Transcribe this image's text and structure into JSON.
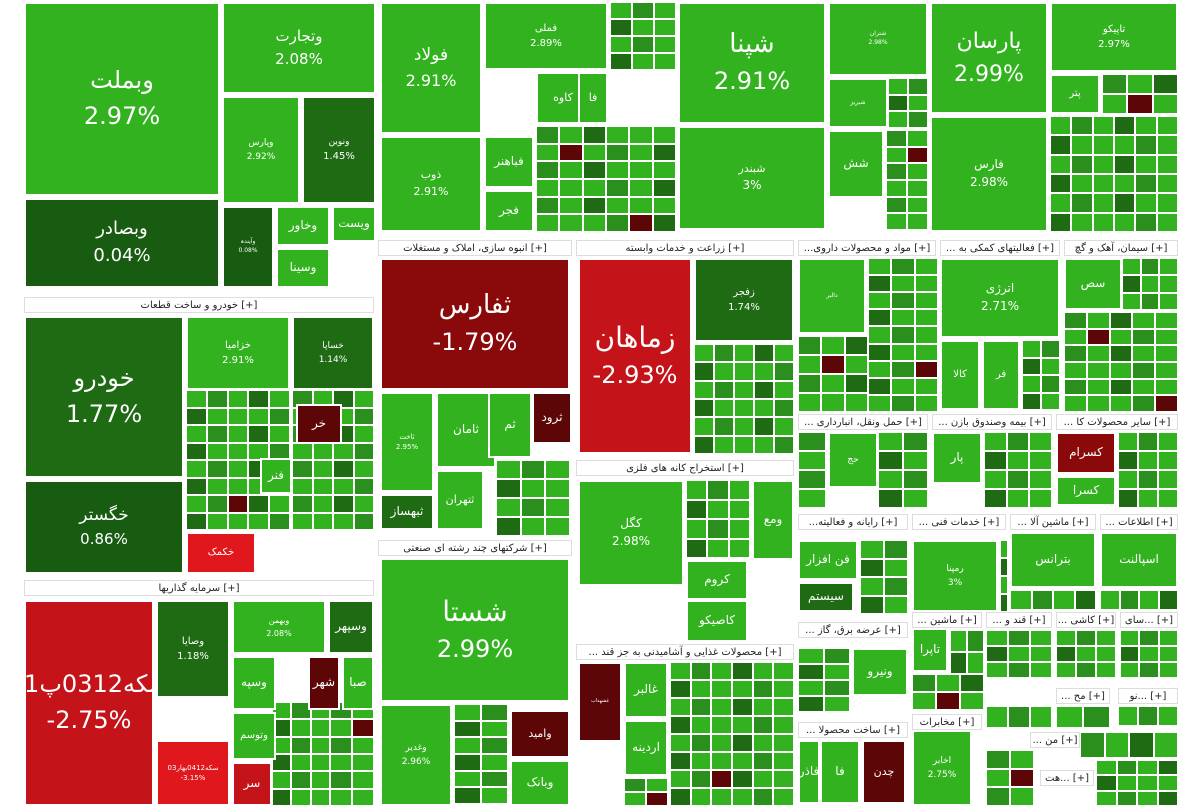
{
  "colors": {
    "green": "#33b21f",
    "green_mid": "#2b8f1d",
    "green_dark": "#1f6b14",
    "green_darkest": "#185c12",
    "red": "#c4141a",
    "red_bright": "#e0171c",
    "red_dark": "#8a0a0c",
    "red_darkest": "#5c0608",
    "header_bg": "#ffffff",
    "header_text": "#222222"
  },
  "chart_data": {
    "type": "treemap",
    "value_unit": "%",
    "sectors": [
      {
        "id": "bank",
        "header": null
      },
      {
        "id": "auto",
        "header": "[+] خودرو و ساخت قطعات"
      },
      {
        "id": "invest",
        "header": "[+] سرمایه گذاریها"
      },
      {
        "id": "metals",
        "header": null
      },
      {
        "id": "realestate",
        "header": "[+] انبوه سازی، املاک و مستغلات"
      },
      {
        "id": "multi",
        "header": "[+] شرکتهای چند رشته ای صنعتی"
      },
      {
        "id": "agri",
        "header": "[+] زراعت و خدمات وابسته"
      },
      {
        "id": "mining",
        "header": "[+] استخراج کانه های فلزی"
      },
      {
        "id": "food",
        "header": "[+] محصولات غذایی و آشامیدنی به جز قند ..."
      },
      {
        "id": "refinery",
        "header": null
      },
      {
        "id": "petchem",
        "header": null
      },
      {
        "id": "pharma",
        "header": "[+] مواد و محصولات داروی..."
      },
      {
        "id": "support",
        "header": "[+] فعالیتهای کمکی به ..."
      },
      {
        "id": "cement",
        "header": "[+] سیمان، آهک و گچ"
      },
      {
        "id": "transport",
        "header": "[+] حمل ونقل، انبارداری ..."
      },
      {
        "id": "insurance",
        "header": "[+] بیمه وصندوق بازن ..."
      },
      {
        "id": "othermin",
        "header": "[+] سایر محصولات کا ..."
      },
      {
        "id": "computer",
        "header": "[+] رایانه و فعالیته..."
      },
      {
        "id": "engineering",
        "header": "[+] خدمات فنی ..."
      },
      {
        "id": "machinery",
        "header": "[+] ماشین آلا ..."
      },
      {
        "id": "it",
        "header": "[+] اطلاعات ..."
      },
      {
        "id": "utility",
        "header": "[+] عرضه برق، گاز ..."
      },
      {
        "id": "tile",
        "header": "[+] کاشی ..."
      },
      {
        "id": "electric",
        "header": "[+] ماشین ..."
      },
      {
        "id": "sugar",
        "header": "[+] قند و ..."
      },
      {
        "id": "misc4",
        "header": "[+] ...سای"
      },
      {
        "id": "rubber",
        "header": "[+] ساخت محصولا ..."
      },
      {
        "id": "telecom",
        "header": "[+] مخابرات"
      },
      {
        "id": "s_mah",
        "header": "[+] مح ..."
      },
      {
        "id": "s_nu",
        "header": "[+] ...نو"
      },
      {
        "id": "s_man",
        "header": "[+] من ..."
      },
      {
        "id": "s_hat",
        "header": "[+] ...هت"
      }
    ],
    "tiles": [
      {
        "sector": "bank",
        "name": "وبملت",
        "change": "2.97%",
        "color": "green"
      },
      {
        "sector": "bank",
        "name": "وتجارت",
        "change": "2.08%",
        "color": "green"
      },
      {
        "sector": "bank",
        "name": "وپارس",
        "change": "2.92%",
        "color": "green"
      },
      {
        "sector": "bank",
        "name": "ونوین",
        "change": "1.45%",
        "color": "green_dark"
      },
      {
        "sector": "bank",
        "name": "وبصادر",
        "change": "0.04%",
        "color": "green_darkest"
      },
      {
        "sector": "bank",
        "name": "وآیندہ",
        "change": "0.08%",
        "color": "green_darkest"
      },
      {
        "sector": "bank",
        "name": "وخاور",
        "change": "",
        "color": "green"
      },
      {
        "sector": "bank",
        "name": "ویست",
        "change": "",
        "color": "green"
      },
      {
        "sector": "bank",
        "name": "وسینا",
        "change": "",
        "color": "green"
      },
      {
        "sector": "auto",
        "name": "خودرو",
        "change": "1.77%",
        "color": "green_dark"
      },
      {
        "sector": "auto",
        "name": "خگستر",
        "change": "0.86%",
        "color": "green_darkest"
      },
      {
        "sector": "auto",
        "name": "خزامیا",
        "change": "2.91%",
        "color": "green"
      },
      {
        "sector": "auto",
        "name": "خساپا",
        "change": "1.14%",
        "color": "green_dark"
      },
      {
        "sector": "auto",
        "name": "خکمک",
        "change": "",
        "color": "red_bright"
      },
      {
        "sector": "auto",
        "name": "خر",
        "change": "",
        "color": "red_darkest"
      },
      {
        "sector": "auto",
        "name": "فنر",
        "change": "",
        "color": "green"
      },
      {
        "sector": "invest",
        "name": "سکه0312پ01",
        "change": "-2.75%",
        "color": "red"
      },
      {
        "sector": "invest",
        "name": "وصایا",
        "change": "1.18%",
        "color": "green_dark"
      },
      {
        "sector": "invest",
        "name": "وبهمن",
        "change": "2.08%",
        "color": "green"
      },
      {
        "sector": "invest",
        "name": "وسپهر",
        "change": "",
        "color": "green_dark"
      },
      {
        "sector": "invest",
        "name": "سکه0412بهار03",
        "change": "-3.15%",
        "color": "red_bright"
      },
      {
        "sector": "invest",
        "name": "وسپه",
        "change": "",
        "color": "green"
      },
      {
        "sector": "invest",
        "name": "صبا",
        "change": "",
        "color": "green"
      },
      {
        "sector": "invest",
        "name": "شهر",
        "change": "",
        "color": "red_darkest"
      },
      {
        "sector": "invest",
        "name": "وتوسم",
        "change": "",
        "color": "green"
      },
      {
        "sector": "invest",
        "name": "سر",
        "change": "",
        "color": "red"
      },
      {
        "sector": "metals",
        "name": "فولاد",
        "change": "2.91%",
        "color": "green"
      },
      {
        "sector": "metals",
        "name": "فملی",
        "change": "2.89%",
        "color": "green"
      },
      {
        "sector": "metals",
        "name": "ذوب",
        "change": "2.91%",
        "color": "green"
      },
      {
        "sector": "metals",
        "name": "کاوه",
        "change": "",
        "color": "green"
      },
      {
        "sector": "metals",
        "name": "فا",
        "change": "",
        "color": "green"
      },
      {
        "sector": "metals",
        "name": "فباهنر",
        "change": "",
        "color": "green"
      },
      {
        "sector": "metals",
        "name": "فجر",
        "change": "",
        "color": "green"
      },
      {
        "sector": "realestate",
        "name": "ثفارس",
        "change": "-1.79%",
        "color": "red_dark"
      },
      {
        "sector": "realestate",
        "name": "ثامان",
        "change": "",
        "color": "green"
      },
      {
        "sector": "realestate",
        "name": "ثم",
        "change": "",
        "color": "green"
      },
      {
        "sector": "realestate",
        "name": "ثرود",
        "change": "",
        "color": "red_darkest"
      },
      {
        "sector": "realestate",
        "name": "ثتهران",
        "change": "",
        "color": "green"
      },
      {
        "sector": "realestate",
        "name": "ثبهساز",
        "change": "",
        "color": "green_dark"
      },
      {
        "sector": "realestate",
        "name": "ثاخت",
        "change": "2.95%",
        "color": "green"
      },
      {
        "sector": "multi",
        "name": "شستا",
        "change": "2.99%",
        "color": "green"
      },
      {
        "sector": "multi",
        "name": "وامید",
        "change": "",
        "color": "red_darkest"
      },
      {
        "sector": "multi",
        "name": "وغدیر",
        "change": "2.96%",
        "color": "green"
      },
      {
        "sector": "multi",
        "name": "وبانک",
        "change": "",
        "color": "green"
      },
      {
        "sector": "agri",
        "name": "زماهان",
        "change": "-2.93%",
        "color": "red"
      },
      {
        "sector": "agri",
        "name": "زفجر",
        "change": "1.74%",
        "color": "green_dark"
      },
      {
        "sector": "mining",
        "name": "کگل",
        "change": "2.98%",
        "color": "green"
      },
      {
        "sector": "mining",
        "name": "کروم",
        "change": "",
        "color": "green"
      },
      {
        "sector": "mining",
        "name": "کاصیکو",
        "change": "",
        "color": "green"
      },
      {
        "sector": "mining",
        "name": "ومع",
        "change": "",
        "color": "green"
      },
      {
        "sector": "food",
        "name": "غالبر",
        "change": "",
        "color": "green"
      },
      {
        "sector": "food",
        "name": "اردینه",
        "change": "",
        "color": "green"
      },
      {
        "sector": "food",
        "name": "غشهداب",
        "change": "",
        "color": "red_darkest"
      },
      {
        "sector": "refinery",
        "name": "شپنا",
        "change": "2.91%",
        "color": "green"
      },
      {
        "sector": "refinery",
        "name": "شبندر",
        "change": "3%",
        "color": "green"
      },
      {
        "sector": "refinery",
        "name": "شتران",
        "change": "2.98%",
        "color": "green"
      },
      {
        "sector": "refinery",
        "name": "شبریز",
        "change": "",
        "color": "green"
      },
      {
        "sector": "refinery",
        "name": "شش",
        "change": "",
        "color": "green"
      },
      {
        "sector": "petchem",
        "name": "پارسان",
        "change": "2.99%",
        "color": "green"
      },
      {
        "sector": "petchem",
        "name": "تاپیکو",
        "change": "2.97%",
        "color": "green"
      },
      {
        "sector": "petchem",
        "name": "فارس",
        "change": "2.98%",
        "color": "green"
      },
      {
        "sector": "petchem",
        "name": "پتر",
        "change": "",
        "color": "green"
      },
      {
        "sector": "pharma",
        "name": "دالبر",
        "change": "",
        "color": "green"
      },
      {
        "sector": "support",
        "name": "اترژی",
        "change": "2.71%",
        "color": "green"
      },
      {
        "sector": "support",
        "name": "کالا",
        "change": "",
        "color": "green"
      },
      {
        "sector": "support",
        "name": "فر",
        "change": "",
        "color": "green"
      },
      {
        "sector": "cement",
        "name": "سص",
        "change": "",
        "color": "green"
      },
      {
        "sector": "transport",
        "name": "حج",
        "change": "",
        "color": "green"
      },
      {
        "sector": "insurance",
        "name": "پار",
        "change": "",
        "color": "green"
      },
      {
        "sector": "othermin",
        "name": "کسرام",
        "change": "",
        "color": "red_dark"
      },
      {
        "sector": "othermin",
        "name": "کسرا",
        "change": "",
        "color": "green"
      },
      {
        "sector": "computer",
        "name": "فن افزار",
        "change": "",
        "color": "green"
      },
      {
        "sector": "computer",
        "name": "سیستم",
        "change": "",
        "color": "green_dark"
      },
      {
        "sector": "engineering",
        "name": "رمپنا",
        "change": "3%",
        "color": "green"
      },
      {
        "sector": "machinery",
        "name": "بترانس",
        "change": "",
        "color": "green"
      },
      {
        "sector": "it",
        "name": "اسپالنت",
        "change": "",
        "color": "green"
      },
      {
        "sector": "utility",
        "name": "ونیرو",
        "change": "",
        "color": "green"
      },
      {
        "sector": "electric",
        "name": "تاپرا",
        "change": "",
        "color": "green"
      },
      {
        "sector": "rubber",
        "name": "فا",
        "change": "",
        "color": "green"
      },
      {
        "sector": "rubber",
        "name": "فاذر",
        "change": "",
        "color": "green"
      },
      {
        "sector": "rubber",
        "name": "چدن",
        "change": "",
        "color": "red_darkest"
      },
      {
        "sector": "telecom",
        "name": "اخابر",
        "change": "2.75%",
        "color": "green"
      }
    ]
  }
}
